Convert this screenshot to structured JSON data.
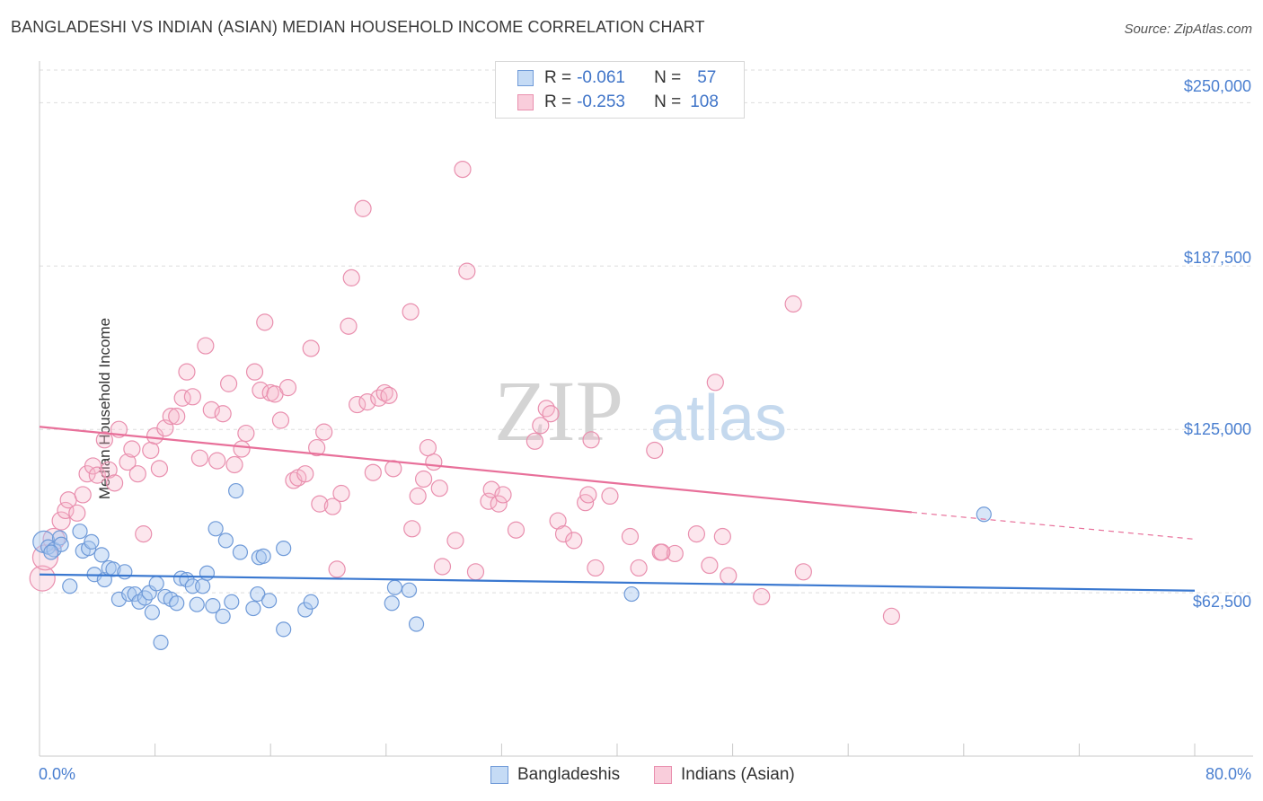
{
  "title": "BANGLADESHI VS INDIAN (ASIAN) MEDIAN HOUSEHOLD INCOME CORRELATION CHART",
  "source": "Source: ZipAtlas.com",
  "watermark": {
    "zip": "ZIP",
    "atlas": "atlas"
  },
  "colors": {
    "blue": "#3a78d0",
    "blue_fill": "#a9c8f0",
    "pink": "#e8709a",
    "pink_fill": "#f6b7cb",
    "grid": "#dddddd",
    "tick_text": "#4a7fd0"
  },
  "legend": {
    "rows": [
      {
        "r_label": "R =",
        "r_value": "-0.061",
        "n_label": "N =",
        "n_value": "57"
      },
      {
        "r_label": "R =",
        "r_value": "-0.253",
        "n_label": "N =",
        "n_value": "108"
      }
    ]
  },
  "bottom_legend": {
    "series1": "Bangladeshis",
    "series2": "Indians (Asian)"
  },
  "chart_data": {
    "type": "scatter",
    "title": "BANGLADESHI VS INDIAN (ASIAN) MEDIAN HOUSEHOLD INCOME CORRELATION CHART",
    "xlabel": "",
    "ylabel": "Median Household Income",
    "xlim": [
      0,
      80
    ],
    "ylim": [
      0,
      262500
    ],
    "x_tick_labels": [
      "0.0%",
      "80.0%"
    ],
    "y_ticks": [
      62500,
      125000,
      187500,
      250000
    ],
    "y_tick_labels": [
      "$62,500",
      "$125,000",
      "$187,500",
      "$250,000"
    ],
    "grid": true,
    "legend_placement": "top-center",
    "series": [
      {
        "name": "Bangladeshis",
        "r": -0.061,
        "n": 57,
        "trend": {
          "x": [
            0,
            80
          ],
          "y": [
            69500,
            63300
          ]
        },
        "points": [
          [
            0.3,
            82000,
            8
          ],
          [
            0.6,
            80000,
            4
          ],
          [
            1.0,
            79000,
            4
          ],
          [
            1.4,
            83500,
            4
          ],
          [
            1.5,
            81000,
            4
          ],
          [
            2.1,
            65000,
            4
          ],
          [
            2.8,
            86000,
            4
          ],
          [
            3.0,
            78500,
            4
          ],
          [
            3.4,
            79500,
            4
          ],
          [
            3.6,
            82000,
            4
          ],
          [
            3.8,
            69500,
            4
          ],
          [
            4.3,
            77000,
            4
          ],
          [
            4.5,
            67500,
            4
          ],
          [
            4.8,
            72000,
            4
          ],
          [
            5.1,
            71500,
            4
          ],
          [
            5.5,
            60000,
            4
          ],
          [
            5.9,
            70500,
            4
          ],
          [
            6.2,
            62000,
            4
          ],
          [
            6.6,
            62000,
            4
          ],
          [
            6.9,
            59000,
            4
          ],
          [
            7.3,
            60500,
            4
          ],
          [
            7.6,
            62500,
            4
          ],
          [
            7.8,
            55000,
            4
          ],
          [
            8.1,
            66000,
            4
          ],
          [
            8.4,
            43500,
            4
          ],
          [
            8.7,
            61000,
            4
          ],
          [
            9.1,
            60000,
            4
          ],
          [
            9.5,
            58500,
            4
          ],
          [
            9.8,
            68000,
            4
          ],
          [
            10.2,
            67500,
            4
          ],
          [
            10.6,
            65000,
            4
          ],
          [
            10.9,
            58000,
            4
          ],
          [
            11.3,
            65000,
            4
          ],
          [
            11.6,
            70000,
            4
          ],
          [
            12.0,
            57500,
            4
          ],
          [
            12.2,
            87000,
            4
          ],
          [
            12.7,
            53500,
            4
          ],
          [
            12.9,
            82500,
            4
          ],
          [
            13.3,
            59000,
            4
          ],
          [
            13.9,
            78000,
            4
          ],
          [
            14.8,
            56500,
            4
          ],
          [
            15.1,
            62000,
            4
          ],
          [
            15.2,
            76000,
            4
          ],
          [
            15.5,
            76500,
            4
          ],
          [
            15.9,
            59500,
            4
          ],
          [
            16.9,
            48500,
            4
          ],
          [
            16.9,
            79500,
            4
          ],
          [
            18.4,
            56000,
            4
          ],
          [
            18.8,
            59000,
            4
          ],
          [
            24.4,
            58500,
            4
          ],
          [
            24.6,
            64500,
            4
          ],
          [
            25.6,
            63500,
            4
          ],
          [
            26.1,
            50500,
            4
          ],
          [
            13.6,
            101500,
            4
          ],
          [
            41.0,
            62000,
            4
          ],
          [
            65.4,
            92500,
            4
          ],
          [
            0.8,
            78000,
            4
          ]
        ]
      },
      {
        "name": "Indians (Asian)",
        "r": -0.253,
        "n": 108,
        "trend": {
          "x": [
            0,
            60.4
          ],
          "y": [
            126000,
            93300
          ]
        },
        "trend_extension": {
          "x": [
            60.4,
            80
          ],
          "y": [
            93300,
            83000
          ]
        },
        "points": [
          [
            0.2,
            68000,
            10
          ],
          [
            0.4,
            76000,
            10
          ],
          [
            1.0,
            83000,
            8
          ],
          [
            1.5,
            90000,
            6
          ],
          [
            1.8,
            94000,
            5
          ],
          [
            2.0,
            98000,
            5
          ],
          [
            2.6,
            93000,
            5
          ],
          [
            3.0,
            100000,
            5
          ],
          [
            3.3,
            108000,
            5
          ],
          [
            3.7,
            111000,
            5
          ],
          [
            4.0,
            107500,
            5
          ],
          [
            4.5,
            121000,
            5
          ],
          [
            4.8,
            109500,
            5
          ],
          [
            5.2,
            104500,
            5
          ],
          [
            5.5,
            125000,
            5
          ],
          [
            6.1,
            112500,
            5
          ],
          [
            6.4,
            117500,
            5
          ],
          [
            6.8,
            108000,
            5
          ],
          [
            7.2,
            85000,
            5
          ],
          [
            7.7,
            117000,
            5
          ],
          [
            8.0,
            122500,
            5
          ],
          [
            8.3,
            110000,
            5
          ],
          [
            8.7,
            125500,
            5
          ],
          [
            9.1,
            130000,
            5
          ],
          [
            9.5,
            130000,
            5
          ],
          [
            9.9,
            137000,
            5
          ],
          [
            10.2,
            147000,
            5
          ],
          [
            10.6,
            137500,
            5
          ],
          [
            11.1,
            114000,
            5
          ],
          [
            11.5,
            157000,
            5
          ],
          [
            11.9,
            132500,
            5
          ],
          [
            12.3,
            113000,
            5
          ],
          [
            12.7,
            131000,
            5
          ],
          [
            13.1,
            142500,
            5
          ],
          [
            13.5,
            111500,
            5
          ],
          [
            14.0,
            117500,
            5
          ],
          [
            14.3,
            123500,
            5
          ],
          [
            14.9,
            147000,
            5
          ],
          [
            15.3,
            140000,
            5
          ],
          [
            15.6,
            166000,
            5
          ],
          [
            16.0,
            139000,
            5
          ],
          [
            16.3,
            138500,
            5
          ],
          [
            16.7,
            128500,
            5
          ],
          [
            17.2,
            141000,
            5
          ],
          [
            17.6,
            105500,
            5
          ],
          [
            17.9,
            106500,
            5
          ],
          [
            18.4,
            108000,
            5
          ],
          [
            18.8,
            156000,
            5
          ],
          [
            19.2,
            118000,
            5
          ],
          [
            19.4,
            96500,
            5
          ],
          [
            19.7,
            124000,
            5
          ],
          [
            20.3,
            95500,
            5
          ],
          [
            20.6,
            71500,
            5
          ],
          [
            20.9,
            100500,
            5
          ],
          [
            21.4,
            164500,
            5
          ],
          [
            21.6,
            183000,
            5
          ],
          [
            22.0,
            134500,
            5
          ],
          [
            22.4,
            209500,
            5
          ],
          [
            22.7,
            135500,
            5
          ],
          [
            23.1,
            108500,
            5
          ],
          [
            23.5,
            137000,
            5
          ],
          [
            23.9,
            139000,
            5
          ],
          [
            24.2,
            138000,
            5
          ],
          [
            24.5,
            110000,
            5
          ],
          [
            25.7,
            170000,
            5
          ],
          [
            25.8,
            87000,
            5
          ],
          [
            26.2,
            99500,
            5
          ],
          [
            26.6,
            106000,
            5
          ],
          [
            26.9,
            118000,
            5
          ],
          [
            27.3,
            112500,
            5
          ],
          [
            27.7,
            102500,
            5
          ],
          [
            27.9,
            72500,
            5
          ],
          [
            28.8,
            82500,
            5
          ],
          [
            29.3,
            224500,
            5
          ],
          [
            29.6,
            185500,
            5
          ],
          [
            30.2,
            70500,
            5
          ],
          [
            31.1,
            97500,
            5
          ],
          [
            31.3,
            102000,
            5
          ],
          [
            31.8,
            96500,
            5
          ],
          [
            32.1,
            100000,
            5
          ],
          [
            33.0,
            86500,
            5
          ],
          [
            34.3,
            120500,
            5
          ],
          [
            34.7,
            126500,
            5
          ],
          [
            35.1,
            133000,
            5
          ],
          [
            35.4,
            131000,
            5
          ],
          [
            35.9,
            90000,
            5
          ],
          [
            36.3,
            85000,
            5
          ],
          [
            37.0,
            82500,
            5
          ],
          [
            37.8,
            97000,
            5
          ],
          [
            38.0,
            100000,
            5
          ],
          [
            38.2,
            121000,
            5
          ],
          [
            38.5,
            72000,
            5
          ],
          [
            39.5,
            99500,
            5
          ],
          [
            40.9,
            84000,
            5
          ],
          [
            41.5,
            72000,
            5
          ],
          [
            42.6,
            117000,
            5
          ],
          [
            43.0,
            78000,
            5
          ],
          [
            44.0,
            77500,
            5
          ],
          [
            45.5,
            85000,
            5
          ],
          [
            46.4,
            73000,
            5
          ],
          [
            47.3,
            84000,
            5
          ],
          [
            47.7,
            69000,
            5
          ],
          [
            50.0,
            61000,
            5
          ],
          [
            52.9,
            70500,
            5
          ],
          [
            59.0,
            53500,
            5
          ],
          [
            46.8,
            143000,
            5
          ],
          [
            52.2,
            173000,
            5
          ],
          [
            43.1,
            78000,
            5
          ]
        ]
      }
    ]
  }
}
